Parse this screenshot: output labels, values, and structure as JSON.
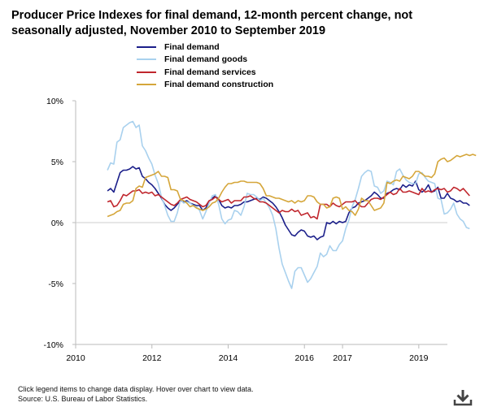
{
  "title": "Producer Price Indexes for final demand, 12-month percent change, not seasonally adjusted, November 2010 to September 2019",
  "footnote": {
    "line1": "Click legend items to change data display. Hover over chart to view data.",
    "line2": "Source: U.S. Bureau of Labor Statistics."
  },
  "download_icon": "download-icon",
  "chart_data": {
    "type": "line",
    "title": "Producer Price Indexes for final demand, 12-month percent change, not seasonally adjusted, November 2010 to September 2019",
    "xlabel": "",
    "ylabel": "",
    "x_start": "2010-11",
    "x_end": "2019-09",
    "x_ticks": [
      "2010",
      "2012",
      "2014",
      "2016",
      "2017",
      "2019"
    ],
    "y_ticks": [
      "10%",
      "5%",
      "0%",
      "-5%",
      "-10%"
    ],
    "ylim": [
      -10,
      10
    ],
    "zero_line": true,
    "grid": false,
    "legend_position": "top",
    "series": [
      {
        "name": "Final demand",
        "color": "#1b1f8a",
        "values": [
          2.6,
          2.8,
          2.5,
          3.3,
          4.1,
          4.3,
          4.3,
          4.4,
          4.6,
          4.4,
          4.5,
          3.8,
          3.6,
          3.3,
          3.1,
          2.8,
          2.4,
          2.0,
          1.5,
          1.2,
          1.0,
          1.2,
          1.5,
          1.8,
          1.7,
          1.8,
          1.6,
          1.5,
          1.4,
          1.4,
          1.0,
          1.2,
          1.7,
          2.0,
          2.2,
          1.9,
          1.4,
          1.2,
          1.3,
          1.2,
          1.4,
          1.4,
          1.5,
          1.7,
          1.7,
          1.8,
          1.9,
          2.0,
          1.9,
          2.1,
          2.0,
          1.8,
          1.6,
          1.3,
          0.9,
          0.4,
          -0.2,
          -0.6,
          -1.0,
          -1.1,
          -0.8,
          -0.6,
          -0.7,
          -1.1,
          -1.2,
          -1.1,
          -1.4,
          -1.2,
          -1.1,
          0.0,
          -0.1,
          0.1,
          -0.1,
          0.1,
          0.0,
          0.1,
          0.8,
          1.2,
          1.3,
          1.6,
          1.7,
          1.8,
          2.0,
          2.2,
          2.5,
          2.3,
          2.0,
          2.0,
          2.4,
          2.5,
          2.7,
          2.8,
          2.7,
          3.1,
          2.9,
          3.1,
          3.0,
          3.4,
          2.7,
          2.5,
          2.7,
          3.1,
          2.5,
          2.6,
          2.9,
          2.0,
          2.0,
          2.4,
          2.0,
          1.9,
          1.7,
          1.8,
          1.6,
          1.6,
          1.4
        ]
      },
      {
        "name": "Final demand goods",
        "color": "#a9d1ee",
        "values": [
          4.3,
          4.9,
          4.8,
          6.6,
          6.8,
          7.8,
          8.0,
          8.2,
          8.3,
          7.8,
          8.0,
          6.3,
          5.9,
          5.3,
          4.8,
          3.9,
          3.2,
          2.1,
          1.4,
          0.6,
          0.1,
          0.1,
          0.8,
          1.9,
          1.6,
          1.7,
          1.6,
          1.4,
          1.3,
          1.0,
          0.3,
          0.9,
          1.6,
          2.2,
          2.3,
          1.5,
          0.3,
          -0.1,
          0.2,
          0.3,
          1.0,
          0.9,
          0.6,
          1.3,
          2.4,
          2.3,
          2.3,
          2.1,
          1.8,
          2.0,
          1.6,
          1.2,
          0.6,
          -0.5,
          -2.1,
          -3.4,
          -4.1,
          -4.8,
          -5.4,
          -4.0,
          -3.7,
          -3.7,
          -4.3,
          -4.9,
          -4.6,
          -4.1,
          -3.6,
          -2.5,
          -2.8,
          -2.6,
          -1.9,
          -2.3,
          -2.3,
          -1.8,
          -1.5,
          -0.5,
          0.2,
          1.3,
          1.9,
          2.8,
          3.8,
          4.1,
          4.3,
          4.2,
          3.0,
          2.9,
          2.4,
          2.6,
          3.4,
          3.3,
          3.1,
          4.2,
          4.4,
          3.9,
          3.5,
          3.3,
          3.2,
          3.2,
          4.0,
          4.1,
          3.7,
          3.4,
          3.3,
          3.2,
          2.0,
          1.9,
          0.7,
          0.8,
          1.1,
          1.6,
          0.7,
          0.3,
          0.1,
          -0.4,
          -0.5
        ]
      },
      {
        "name": "Final demand services",
        "color": "#c0262d",
        "values": [
          1.7,
          1.8,
          1.3,
          1.4,
          1.8,
          2.3,
          2.2,
          2.4,
          2.6,
          2.6,
          2.7,
          2.4,
          2.5,
          2.4,
          2.5,
          2.2,
          2.3,
          2.1,
          1.9,
          1.7,
          1.5,
          1.4,
          1.6,
          1.9,
          2.0,
          2.1,
          1.9,
          1.8,
          1.7,
          1.5,
          1.3,
          1.4,
          1.8,
          1.9,
          2.1,
          1.9,
          1.7,
          1.8,
          1.9,
          1.6,
          1.8,
          1.8,
          1.8,
          2.1,
          2.1,
          2.2,
          2.0,
          1.9,
          1.7,
          1.7,
          1.6,
          1.4,
          1.2,
          1.0,
          0.8,
          1.0,
          0.9,
          0.9,
          1.1,
          0.9,
          1.0,
          0.6,
          0.7,
          0.8,
          0.4,
          0.5,
          0.3,
          1.5,
          1.5,
          1.5,
          1.3,
          1.6,
          1.4,
          1.3,
          1.5,
          1.7,
          1.7,
          1.7,
          1.8,
          1.5,
          1.3,
          1.3,
          1.6,
          1.9,
          2.0,
          2.0,
          1.9,
          2.1,
          2.3,
          2.5,
          2.3,
          2.4,
          2.8,
          2.5,
          2.5,
          2.6,
          2.5,
          2.4,
          2.3,
          2.8,
          2.5,
          2.6,
          2.5,
          2.7,
          2.8,
          2.7,
          2.8,
          2.5,
          2.6,
          2.9,
          2.8,
          2.6,
          2.8,
          2.5,
          2.2
        ]
      },
      {
        "name": "Final demand construction",
        "color": "#d5a63a",
        "values": [
          0.5,
          0.6,
          0.7,
          0.9,
          1.0,
          1.5,
          1.6,
          1.6,
          1.8,
          2.8,
          3.0,
          2.9,
          3.7,
          3.8,
          3.9,
          4.0,
          4.2,
          3.8,
          3.8,
          3.7,
          2.7,
          2.7,
          2.6,
          1.9,
          1.8,
          1.6,
          1.3,
          1.4,
          1.2,
          1.1,
          1.0,
          1.1,
          1.3,
          1.6,
          1.7,
          2.0,
          2.5,
          2.9,
          3.2,
          3.2,
          3.3,
          3.3,
          3.4,
          3.4,
          3.3,
          3.3,
          3.3,
          3.3,
          3.2,
          2.8,
          2.2,
          2.2,
          2.1,
          2.0,
          2.0,
          1.9,
          1.8,
          1.7,
          1.8,
          1.6,
          1.8,
          1.7,
          1.8,
          2.2,
          2.2,
          2.1,
          1.7,
          1.5,
          1.5,
          1.2,
          1.3,
          2.0,
          2.1,
          2.0,
          1.1,
          1.3,
          1.0,
          0.9,
          0.6,
          1.1,
          2.0,
          1.8,
          1.8,
          1.4,
          1.0,
          1.1,
          1.2,
          1.6,
          3.3,
          3.2,
          3.4,
          3.5,
          3.4,
          3.8,
          3.7,
          3.6,
          3.8,
          4.2,
          4.2,
          4.0,
          3.8,
          3.8,
          3.7,
          4.0,
          5.0,
          5.2,
          5.3,
          5.0,
          5.1,
          5.3,
          5.5,
          5.4,
          5.5,
          5.6,
          5.5,
          5.6,
          5.5
        ]
      }
    ]
  }
}
